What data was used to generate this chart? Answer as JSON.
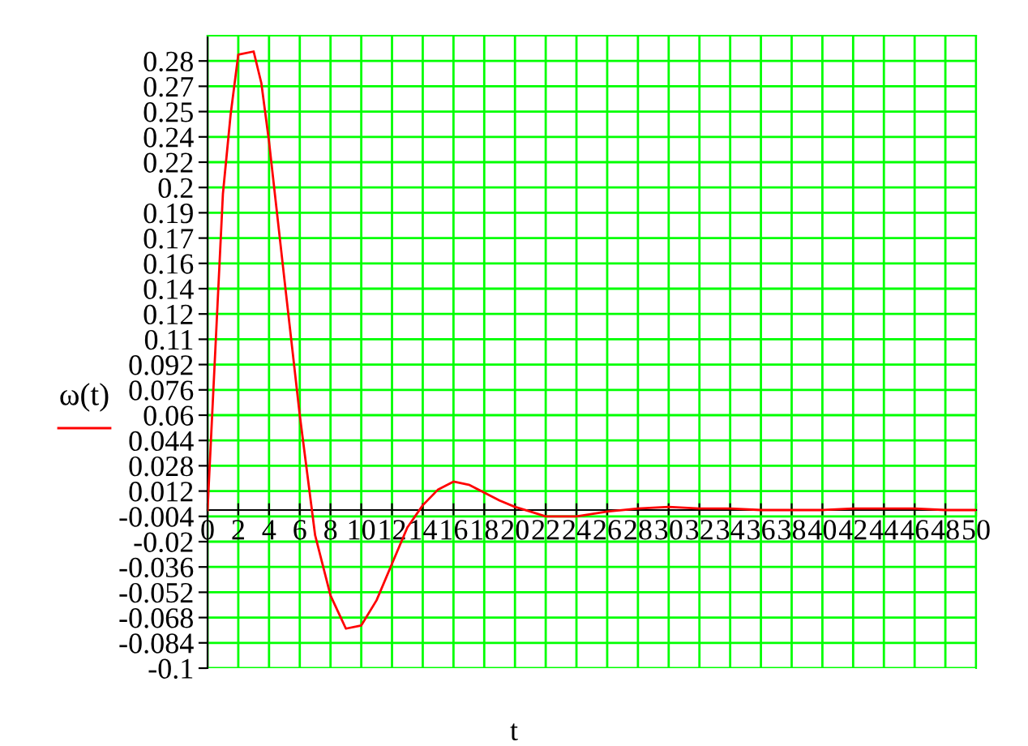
{
  "chart_data": {
    "type": "line",
    "xlabel": "t",
    "ylabel": "ω(t)",
    "series": [
      {
        "color": "#ff0000",
        "x": [
          0,
          0.5,
          1,
          1.5,
          2,
          3,
          3.5,
          4,
          5,
          6,
          7,
          8,
          9,
          10,
          11,
          12,
          13,
          14,
          15,
          16,
          17,
          18,
          19,
          20,
          21,
          22,
          24,
          26,
          28,
          30,
          32,
          34,
          36,
          38,
          40,
          42,
          44,
          46,
          48,
          50
        ],
        "values": [
          0,
          0.1,
          0.2,
          0.25,
          0.288,
          0.29,
          0.27,
          0.233,
          0.146,
          0.06,
          -0.016,
          -0.054,
          -0.075,
          -0.073,
          -0.057,
          -0.034,
          -0.011,
          0.003,
          0.013,
          0.018,
          0.016,
          0.011,
          0.006,
          0.002,
          -0.001,
          -0.004,
          -0.004,
          -0.001,
          0.001,
          0.002,
          0.001,
          0.001,
          0,
          0,
          0,
          0.001,
          0.001,
          0.001,
          0,
          0
        ]
      }
    ],
    "xlim": [
      0,
      50
    ],
    "xticks": [
      0,
      2,
      4,
      6,
      8,
      10,
      12,
      14,
      16,
      18,
      20,
      22,
      24,
      26,
      28,
      30,
      32,
      34,
      36,
      38,
      40,
      42,
      44,
      46,
      48,
      50
    ],
    "ylim": [
      -0.1,
      0.3
    ],
    "yticks": [
      -0.1,
      -0.084,
      -0.068,
      -0.052,
      -0.036,
      -0.02,
      -0.004,
      0.012,
      0.028,
      0.044,
      0.06,
      0.076,
      0.092,
      {
        "value": 0.108,
        "label": "0.11"
      },
      {
        "value": 0.124,
        "label": "0.12"
      },
      0.14,
      {
        "value": 0.156,
        "label": "0.16"
      },
      {
        "value": 0.172,
        "label": "0.17"
      },
      {
        "value": 0.188,
        "label": "0.19"
      },
      {
        "value": 0.204,
        "label": "0.2"
      },
      0.22,
      {
        "value": 0.236,
        "label": "0.24"
      },
      {
        "value": 0.252,
        "label": "0.25"
      },
      {
        "value": 0.268,
        "label": "0.27"
      },
      {
        "value": 0.284,
        "label": "0.28"
      }
    ],
    "grid": true,
    "line_style": "solid",
    "marker": "none"
  }
}
